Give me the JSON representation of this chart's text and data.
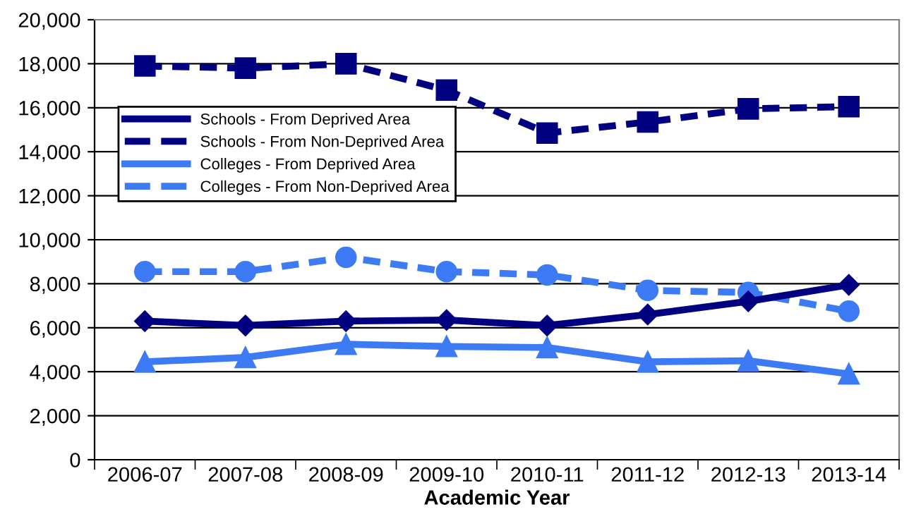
{
  "chart_data": {
    "type": "line",
    "xlabel": "Academic Year",
    "categories": [
      "2006-07",
      "2007-08",
      "2008-09",
      "2009-10",
      "2010-11",
      "2011-12",
      "2012-13",
      "2013-14"
    ],
    "series": [
      {
        "name": "Schools - From Deprived Area",
        "color": "#000080",
        "marker": "diamond",
        "line_style": "solid",
        "values": [
          6300,
          6100,
          6300,
          6350,
          6100,
          6600,
          7200,
          7950
        ]
      },
      {
        "name": "Schools - From Non-Deprived Area",
        "color": "#000080",
        "marker": "square",
        "line_style": "dashed",
        "values": [
          17900,
          17800,
          18000,
          16800,
          14850,
          15350,
          15950,
          16050
        ]
      },
      {
        "name": "Colleges - From Deprived Area",
        "color": "#3d7bf5",
        "marker": "triangle",
        "line_style": "solid",
        "values": [
          4450,
          4650,
          5250,
          5150,
          5100,
          4450,
          4500,
          3900
        ]
      },
      {
        "name": "Colleges - From Non-Deprived Area",
        "color": "#3d7bf5",
        "marker": "circle",
        "line_style": "dashed",
        "values": [
          8550,
          8550,
          9200,
          8550,
          8400,
          7700,
          7600,
          6750
        ]
      }
    ],
    "ylim": [
      0,
      20000
    ],
    "yticks": [
      {
        "value": 0,
        "label": "0"
      },
      {
        "value": 2000,
        "label": "2,000"
      },
      {
        "value": 4000,
        "label": "4,000"
      },
      {
        "value": 6000,
        "label": "6,000"
      },
      {
        "value": 8000,
        "label": "8,000"
      },
      {
        "value": 10000,
        "label": "10,000"
      },
      {
        "value": 12000,
        "label": "12,000"
      },
      {
        "value": 14000,
        "label": "14,000"
      },
      {
        "value": 16000,
        "label": "16,000"
      },
      {
        "value": 18000,
        "label": "18,000"
      },
      {
        "value": 20000,
        "label": "20,000"
      }
    ],
    "grid": "y",
    "legend": "top left"
  }
}
